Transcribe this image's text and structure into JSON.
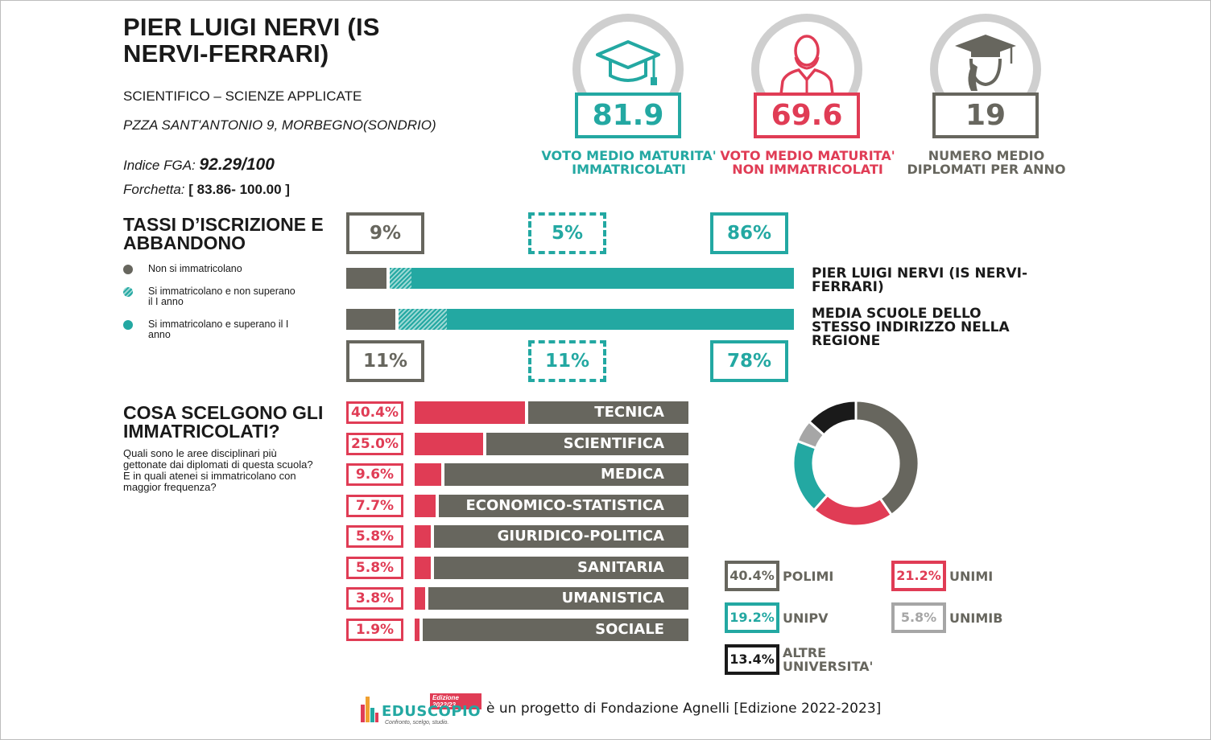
{
  "school": {
    "name": "PIER LUIGI NERVI (IS NERVI-FERRARI)",
    "track": "SCIENTIFICO – SCIENZE APPLICATE",
    "address": "PZZA SANT'ANTONIO 9, MORBEGNO(SONDRIO)",
    "fga_label": "Indice FGA: ",
    "fga_value": "92.29/100",
    "range_label": "Forchetta: ",
    "range_value": "[ 83.86- 100.00 ]"
  },
  "kpis": [
    {
      "value": "81.9",
      "caption": "VOTO MEDIO MATURITA' IMMATRICOLATI",
      "color": "#23a8a2",
      "icon": "graduation-cap-icon"
    },
    {
      "value": "69.6",
      "caption": "VOTO MEDIO MATURITA' NON IMMATRICOLATI",
      "color": "#e03c55",
      "icon": "person-icon"
    },
    {
      "value": "19",
      "caption": "NUMERO MEDIO DIPLOMATI PER ANNO",
      "color": "#67665e",
      "icon": "graduate-icon"
    }
  ],
  "enrollment": {
    "title": "TASSI D’ISCRIZIONE E ABBANDONO",
    "legend": [
      {
        "label": "Non si immatricolano",
        "color": "#67665e"
      },
      {
        "label": "Si immatricolano e non superano il I anno",
        "color": "#23a8a2"
      },
      {
        "label": "Si immatricolano e superano il I anno",
        "color": "#23a8a2"
      }
    ],
    "school_row": {
      "label": "PIER LUIGI NERVI (IS NERVI-FERRARI)",
      "values": [
        9,
        5,
        86
      ],
      "labels": [
        "9%",
        "5%",
        "86%"
      ]
    },
    "region_row": {
      "label": "MEDIA SCUOLE DELLO STESSO INDIRIZZO NELLA REGIONE",
      "values": [
        11,
        11,
        78
      ],
      "labels": [
        "11%",
        "11%",
        "78%"
      ]
    }
  },
  "areas": {
    "title": "COSA SCELGONO GLI IMMATRICOLATI?",
    "description_1": "Quali sono le aree disciplinari più gettonate dai diplomati di questa scuola?",
    "description_2": "E in quali atenei si immatricolano con maggior frequenza?",
    "items": [
      {
        "label": "TECNICA",
        "pct": "40.4%",
        "value": 40.4
      },
      {
        "label": "SCIENTIFICA",
        "pct": "25.0%",
        "value": 25.0
      },
      {
        "label": "MEDICA",
        "pct": "9.6%",
        "value": 9.6
      },
      {
        "label": "ECONOMICO-STATISTICA",
        "pct": "7.7%",
        "value": 7.7
      },
      {
        "label": "GIURIDICO-POLITICA",
        "pct": "5.8%",
        "value": 5.8
      },
      {
        "label": "SANITARIA",
        "pct": "5.8%",
        "value": 5.8
      },
      {
        "label": "UMANISTICA",
        "pct": "3.8%",
        "value": 3.8
      },
      {
        "label": "SOCIALE",
        "pct": "1.9%",
        "value": 1.9
      }
    ]
  },
  "universities": [
    {
      "name": "POLIMI",
      "pct": "40.4%",
      "value": 40.4,
      "color": "#67665e"
    },
    {
      "name": "UNIMI",
      "pct": "21.2%",
      "value": 21.2,
      "color": "#e03c55"
    },
    {
      "name": "UNIPV",
      "pct": "19.2%",
      "value": 19.2,
      "color": "#23a8a2"
    },
    {
      "name": "UNIMIB",
      "pct": "5.8%",
      "value": 5.8,
      "color": "#a6a6a6"
    },
    {
      "name": "ALTRE UNIVERSITA'",
      "pct": "13.4%",
      "value": 13.4,
      "color": "#1a1a1a"
    }
  ],
  "footer": {
    "logo_text": "EDUSCOPIO",
    "logo_edition": "Edizione 2022/23",
    "logo_tagline": "Confronto, scelgo, studio.",
    "text": "è un progetto di Fondazione Agnelli [Edizione 2022-2023]"
  }
}
